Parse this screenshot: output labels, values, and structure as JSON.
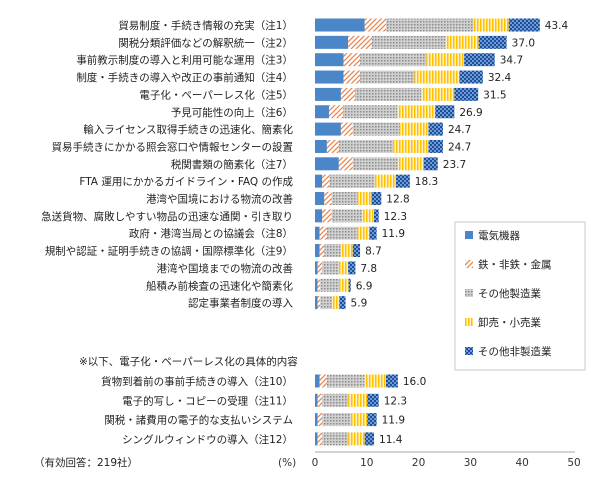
{
  "chart_data": {
    "type": "bar",
    "orientation": "horizontal",
    "stacked": true,
    "title": "",
    "xlabel": "(%)",
    "xlim": [
      0,
      50
    ],
    "xticks": [
      0,
      10,
      20,
      30,
      40,
      50
    ],
    "grid": false,
    "legend_position": "right",
    "footnote": "（有効回答：219社）",
    "section_note": "※以下、電子化・ペーパーレス化の具体的内容",
    "categories": [
      "貿易制度・手続き情報の充実（注1）",
      "関税分類評価などの解釈統一（注2）",
      "事前教示制度の導入と利用可能な運用（注3）",
      "制度・手続きの導入や改正の事前通知（注4）",
      "電子化・ペーパーレス化（注5）",
      "予見可能性の向上（注6）",
      "輸入ライセンス取得手続きの迅速化、簡素化",
      "貿易手続きにかかる照会窓口や情報センターの設置",
      "税関書類の簡素化（注7）",
      "FTA 運用にかかるガイドライン・FAQ の作成",
      "港湾や国境における物流の改善",
      "急送貨物、腐敗しやすい物品の迅速な通関・引き取り",
      "政府・港湾当局との協議会（注8）",
      "規制や認証・証明手続きの協調・国際標準化（注9）",
      "港湾や国境までの物流の改善",
      "船積み前検査の迅速化や簡素化",
      "認定事業者制度の導入",
      "貨物到着前の事前手続きの導入（注10）",
      "電子的写し・コピーの受理（注11）",
      "関税・諸費用の電子的な支払いシステム",
      "シングルウィンドウの導入（注12）"
    ],
    "totals": [
      43.4,
      37.0,
      34.7,
      32.4,
      31.5,
      26.9,
      24.7,
      24.7,
      23.7,
      18.3,
      12.8,
      12.3,
      11.9,
      8.7,
      7.8,
      6.9,
      5.9,
      16.0,
      12.3,
      11.9,
      11.4
    ],
    "total_labels": [
      "43.4",
      "37.0",
      "34.7",
      "32.4",
      "31.5",
      "26.9",
      "24.7",
      "24.7",
      "23.7",
      "18.3",
      "12.8",
      "12.3",
      "11.9",
      "8.7",
      "7.8",
      "6.9",
      "5.9",
      "16.0",
      "12.3",
      "11.9",
      "11.4"
    ],
    "series": [
      {
        "name": "電気機器",
        "color": "#4a86c8",
        "pattern": "solid",
        "values": [
          9.6,
          6.4,
          5.5,
          5.5,
          5.0,
          2.7,
          5.0,
          2.3,
          4.6,
          1.4,
          1.8,
          1.4,
          0.9,
          0.9,
          0.5,
          0.5,
          0.5,
          0.9,
          0.5,
          0.5,
          0.5
        ]
      },
      {
        "name": "鉄・非鉄・金属",
        "color": "#e8834a",
        "pattern": "hatch",
        "values": [
          4.1,
          4.6,
          3.2,
          3.2,
          2.7,
          2.7,
          2.3,
          2.3,
          2.7,
          1.4,
          1.4,
          1.8,
          1.4,
          0.9,
          0.9,
          0.5,
          0.5,
          1.4,
          0.9,
          0.9,
          0.9
        ]
      },
      {
        "name": "その他製造業",
        "color": "#a6a6a6",
        "pattern": "dots",
        "values": [
          16.9,
          14.2,
          12.8,
          10.5,
          12.8,
          10.5,
          9.1,
          10.5,
          8.7,
          8.7,
          5.0,
          5.9,
          5.9,
          3.2,
          3.2,
          3.7,
          2.3,
          7.3,
          5.0,
          5.5,
          5.0
        ]
      },
      {
        "name": "卸売・小売業",
        "color": "#ffc000",
        "pattern": "vlines",
        "values": [
          6.8,
          6.4,
          7.3,
          8.7,
          6.4,
          7.3,
          5.5,
          6.8,
          5.0,
          4.1,
          2.7,
          2.3,
          2.3,
          2.3,
          1.8,
          1.8,
          1.4,
          4.1,
          3.7,
          3.2,
          3.2
        ]
      },
      {
        "name": "その他非製造業",
        "color": "#1f4e99",
        "pattern": "checker",
        "values": [
          6.0,
          5.4,
          5.9,
          4.5,
          4.6,
          3.7,
          2.8,
          2.8,
          2.7,
          2.7,
          1.9,
          0.9,
          1.4,
          1.4,
          1.4,
          0.4,
          1.2,
          2.3,
          2.2,
          1.8,
          1.8
        ]
      }
    ]
  }
}
